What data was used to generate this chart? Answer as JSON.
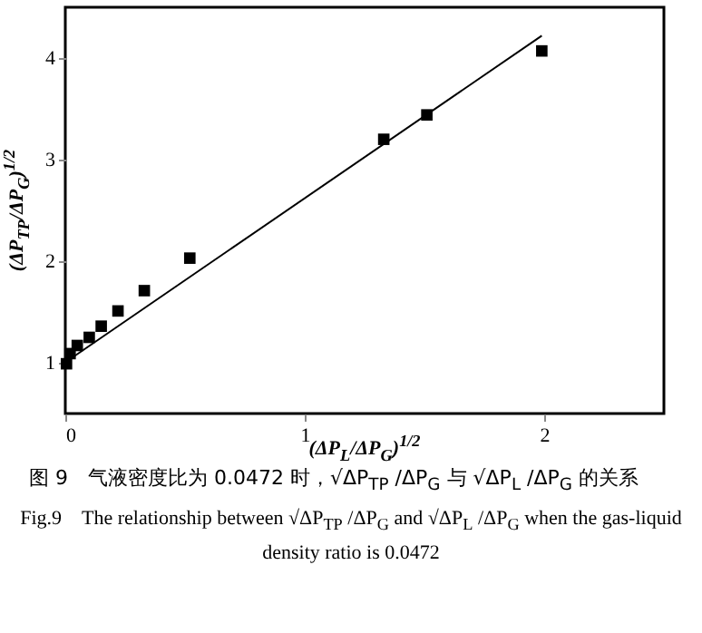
{
  "chart_data": {
    "type": "scatter",
    "xlabel": "(ΔP$_{L}$/ΔP$_{G}$)$^{1/2}$",
    "ylabel": "(ΔP$_{TP}$/ΔP$_{G}$)$^{1/2}$",
    "annotations": [
      "图 9　气液密度比为 0.0472 时，√ΔP$_{TP}$ /ΔP$_{G}$ 与 √ΔP$_{L}$ /ΔP$_{G}$ 的关系",
      "Fig.9　The relationship between √ΔP$_{TP}$ /ΔP$_{G}$ and √ΔP$_{L}$ /ΔP$_{G}$ when the gas-liquid density ratio is 0.0472"
    ],
    "xlim": [
      0,
      2.5
    ],
    "xticks": [
      0,
      1,
      2
    ],
    "ylim": [
      0.5,
      4.5
    ],
    "yticks": [
      1,
      2,
      3,
      4
    ],
    "grid": false,
    "series": [
      {
        "type": "scatter",
        "marker": "square",
        "color": "#000000",
        "x": [
          0.005,
          0.02,
          0.05,
          0.1,
          0.15,
          0.22,
          0.33,
          0.52,
          1.33,
          1.51,
          1.99
        ],
        "values": [
          0.99,
          1.09,
          1.17,
          1.25,
          1.36,
          1.51,
          1.71,
          2.03,
          3.2,
          3.44,
          4.07
        ]
      },
      {
        "type": "line",
        "marker": "none",
        "line_style": "solid",
        "color": "#000000",
        "x": [
          0.01,
          1.99
        ],
        "values": [
          1.02,
          4.22
        ]
      }
    ]
  }
}
